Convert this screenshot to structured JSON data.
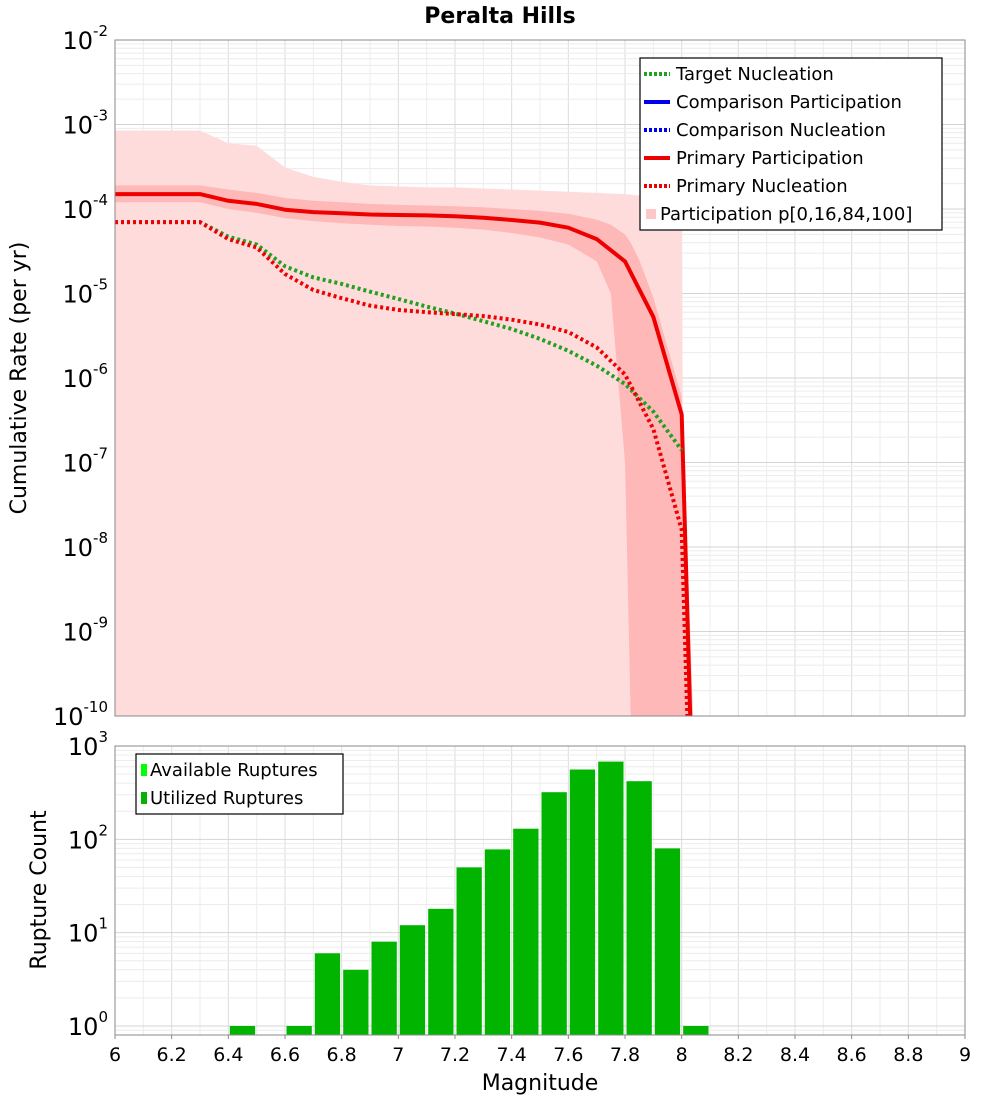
{
  "title": "Peralta Hills",
  "xlabel": "Magnitude",
  "x_ticks": [
    "6",
    "6.2",
    "6.4",
    "6.6",
    "6.8",
    "7",
    "7.2",
    "7.4",
    "7.6",
    "7.8",
    "8",
    "8.2",
    "8.4",
    "8.6",
    "8.8",
    "9"
  ],
  "colors": {
    "target": "#22a022",
    "comparison": "#0000ee",
    "primary": "#ee0000",
    "band_outer": "#ffdcdc",
    "band_inner": "#ffb8b8",
    "bars": "#00b400",
    "bars_available": "#00ff00"
  },
  "chart_data": [
    {
      "type": "line",
      "title": "Peralta Hills",
      "xlabel": "Magnitude",
      "ylabel": "Cumulative Rate (per yr)",
      "xlim": [
        6,
        9
      ],
      "ylim": [
        1e-10,
        0.01
      ],
      "yscale": "log",
      "grid": true,
      "legend_position": "top-right",
      "y_ticks": [
        {
          "base": "10",
          "exp": "-10"
        },
        {
          "base": "10",
          "exp": "-9"
        },
        {
          "base": "10",
          "exp": "-8"
        },
        {
          "base": "10",
          "exp": "-7"
        },
        {
          "base": "10",
          "exp": "-6"
        },
        {
          "base": "10",
          "exp": "-5"
        },
        {
          "base": "10",
          "exp": "-4"
        },
        {
          "base": "10",
          "exp": "-3"
        },
        {
          "base": "10",
          "exp": "-2"
        }
      ],
      "legend": [
        {
          "label": "Target Nucleation",
          "style": "dotted",
          "color": "#22a022"
        },
        {
          "label": "Comparison Participation",
          "style": "solid",
          "color": "#0000ee"
        },
        {
          "label": "Comparison Nucleation",
          "style": "dotted",
          "color": "#0000ee"
        },
        {
          "label": "Primary Participation",
          "style": "solid",
          "color": "#ee0000"
        },
        {
          "label": "Primary Nucleation",
          "style": "dotted",
          "color": "#ee0000"
        },
        {
          "label": "Participation p[0,16,84,100]",
          "style": "box",
          "color": "#ffc8c8"
        }
      ],
      "series": [
        {
          "name": "Target Nucleation",
          "x": [
            6.0,
            6.3,
            6.4,
            6.5,
            6.6,
            6.7,
            6.8,
            6.9,
            7.0,
            7.1,
            7.2,
            7.3,
            7.4,
            7.5,
            7.6,
            7.7,
            7.8,
            7.9,
            8.0
          ],
          "y": [
            7e-05,
            7e-05,
            4.7e-05,
            3.8e-05,
            2.1e-05,
            1.55e-05,
            1.3e-05,
            1.05e-05,
            8.6e-06,
            7e-06,
            5.8e-06,
            4.7e-06,
            3.8e-06,
            2.9e-06,
            2.1e-06,
            1.4e-06,
            8.5e-07,
            4e-07,
            1.4e-07
          ]
        },
        {
          "name": "Primary Participation",
          "x": [
            6.0,
            6.3,
            6.4,
            6.5,
            6.6,
            6.7,
            6.8,
            6.9,
            7.0,
            7.1,
            7.2,
            7.3,
            7.4,
            7.5,
            7.6,
            7.7,
            7.8,
            7.9,
            8.0,
            8.03
          ],
          "y": [
            0.00015,
            0.00015,
            0.000125,
            0.000115,
            9.8e-05,
            9.2e-05,
            8.9e-05,
            8.6e-05,
            8.5e-05,
            8.4e-05,
            8.2e-05,
            7.9e-05,
            7.4e-05,
            6.9e-05,
            6e-05,
            4.4e-05,
            2.4e-05,
            5.3e-06,
            3.7e-07,
            1e-10
          ]
        },
        {
          "name": "Primary Nucleation",
          "x": [
            6.0,
            6.3,
            6.4,
            6.5,
            6.6,
            6.7,
            6.8,
            6.9,
            7.0,
            7.1,
            7.2,
            7.3,
            7.4,
            7.5,
            7.6,
            7.7,
            7.8,
            7.9,
            8.0,
            8.02
          ],
          "y": [
            7e-05,
            7e-05,
            4.4e-05,
            3.5e-05,
            1.7e-05,
            1.1e-05,
            8.8e-06,
            7.2e-06,
            6.4e-06,
            6e-06,
            5.7e-06,
            5.4e-06,
            4.9e-06,
            4.3e-06,
            3.5e-06,
            2.3e-06,
            1.1e-06,
            2.5e-07,
            1.6e-08,
            1e-10
          ]
        }
      ],
      "band_outer": {
        "x": [
          6.0,
          6.3,
          6.4,
          6.5,
          6.6,
          6.7,
          6.8,
          6.9,
          7.0,
          7.1,
          7.2,
          7.3,
          7.4,
          7.5,
          7.6,
          7.7,
          7.8,
          7.9,
          8.0,
          8.01
        ],
        "upper": [
          0.00085,
          0.00085,
          0.0006,
          0.00056,
          0.00031,
          0.00024,
          0.00021,
          0.00019,
          0.000185,
          0.00018,
          0.00018,
          0.000175,
          0.00017,
          0.000165,
          0.00016,
          0.000155,
          0.00015,
          0.00014,
          0.00013,
          1e-10
        ],
        "lower": [
          1e-10,
          1e-10,
          1e-10,
          1e-10,
          1e-10,
          1e-10,
          1e-10,
          1e-10,
          1e-10,
          1e-10,
          1e-10,
          1e-10,
          1e-10,
          1e-10,
          1e-10,
          1e-10,
          1e-10,
          1e-10,
          1e-10,
          1e-10
        ]
      },
      "band_inner": {
        "x": [
          6.0,
          6.3,
          6.4,
          6.5,
          6.6,
          6.7,
          6.8,
          6.9,
          7.0,
          7.1,
          7.2,
          7.3,
          7.4,
          7.5,
          7.6,
          7.7,
          7.75,
          7.8,
          7.82,
          7.85,
          7.9,
          8.0,
          8.02,
          8.04
        ],
        "upper": [
          0.00019,
          0.00019,
          0.00017,
          0.000155,
          0.000135,
          0.000125,
          0.00012,
          0.000115,
          0.000112,
          0.00011,
          0.000108,
          0.000105,
          0.0001,
          9.5e-05,
          8.8e-05,
          7.5e-05,
          6.5e-05,
          5e-05,
          4e-05,
          2.5e-05,
          9e-06,
          6e-07,
          1e-08,
          1e-10
        ],
        "lower": [
          0.00012,
          0.00012,
          0.0001,
          9e-05,
          7.8e-05,
          7.2e-05,
          6.8e-05,
          6.5e-05,
          6.3e-05,
          6.2e-05,
          6e-05,
          5.7e-05,
          5.2e-05,
          4.6e-05,
          3.8e-05,
          2.4e-05,
          1e-05,
          1e-07,
          1e-10,
          1e-10,
          1e-10,
          1e-10,
          1e-10,
          1e-10
        ]
      }
    },
    {
      "type": "bar",
      "ylabel": "Rupture Count",
      "xlabel": "Magnitude",
      "xlim": [
        6,
        9
      ],
      "ylim": [
        0.8,
        1000
      ],
      "yscale": "log",
      "grid": true,
      "legend_position": "top-left",
      "y_ticks": [
        {
          "base": "10",
          "exp": "0"
        },
        {
          "base": "10",
          "exp": "1"
        },
        {
          "base": "10",
          "exp": "2"
        },
        {
          "base": "10",
          "exp": "3"
        }
      ],
      "legend": [
        {
          "label": "Available Ruptures",
          "color": "#00ff00"
        },
        {
          "label": "Utilized Ruptures",
          "color": "#00b400"
        }
      ],
      "bin_width": 0.1,
      "bin_starts": [
        6.4,
        6.6,
        6.7,
        6.8,
        6.9,
        7.0,
        7.1,
        7.2,
        7.3,
        7.4,
        7.5,
        7.6,
        7.7,
        7.8,
        7.9,
        8.0
      ],
      "series": [
        {
          "name": "Utilized Ruptures",
          "values": [
            1,
            1,
            6,
            4,
            8,
            12,
            18,
            50,
            78,
            130,
            320,
            560,
            680,
            420,
            80,
            1
          ]
        }
      ]
    }
  ]
}
